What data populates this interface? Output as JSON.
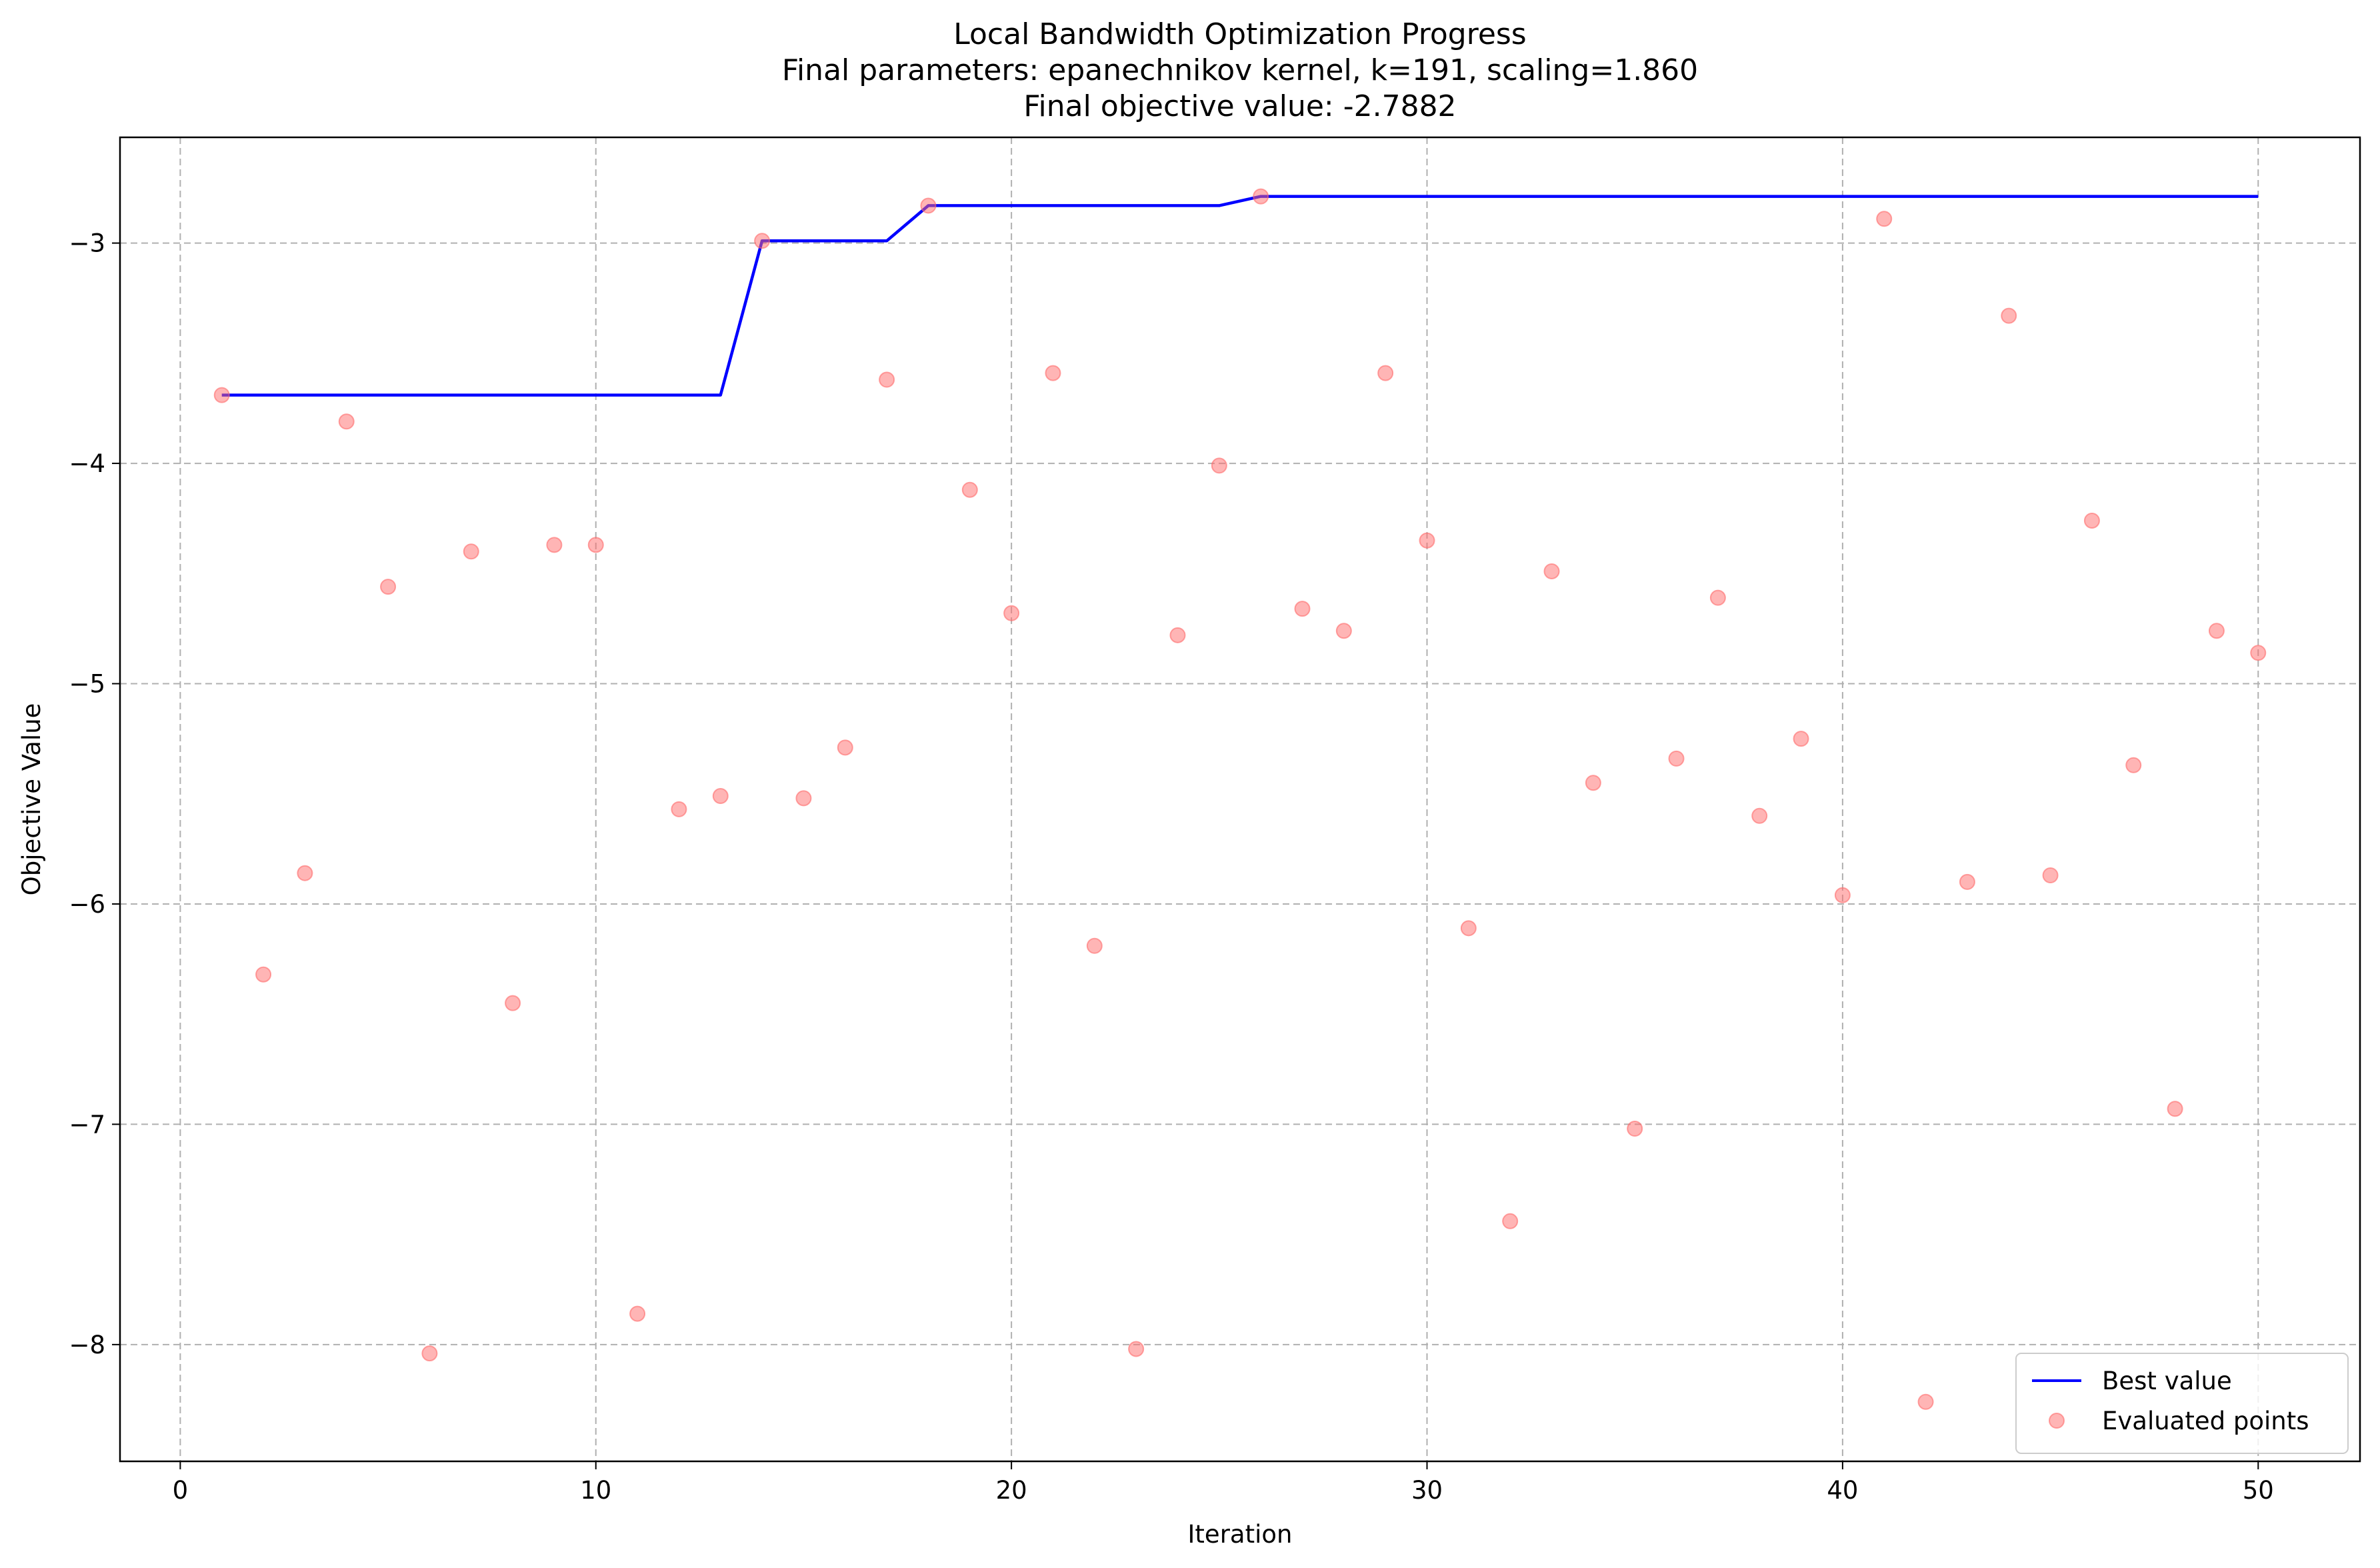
{
  "chart_data": {
    "type": "scatter",
    "title_lines": [
      "Local Bandwidth Optimization Progress",
      "Final parameters: epanechnikov kernel, k=191, scaling=1.860",
      "Final objective value: -2.7882"
    ],
    "xlabel": "Iteration",
    "ylabel": "Objective Value",
    "xlim": [
      -1.45,
      52.45
    ],
    "ylim": [
      -8.53,
      -2.52
    ],
    "x_ticks": [
      0,
      10,
      20,
      30,
      40,
      50
    ],
    "y_ticks": [
      -3,
      -4,
      -5,
      -6,
      -7,
      -8
    ],
    "x_tick_labels": [
      "0",
      "10",
      "20",
      "30",
      "40",
      "50"
    ],
    "y_tick_labels": [
      "−3",
      "−4",
      "−5",
      "−6",
      "−7",
      "−8"
    ],
    "grid": true,
    "legend_position": "bottom-right",
    "series": [
      {
        "name": "Best value",
        "kind": "line",
        "color": "#0000ff",
        "x": [
          1,
          2,
          3,
          4,
          5,
          6,
          7,
          8,
          9,
          10,
          11,
          12,
          13,
          14,
          15,
          16,
          17,
          18,
          19,
          20,
          21,
          22,
          23,
          24,
          25,
          26,
          27,
          28,
          29,
          30,
          31,
          32,
          33,
          34,
          35,
          36,
          37,
          38,
          39,
          40,
          41,
          42,
          43,
          44,
          45,
          46,
          47,
          48,
          49,
          50
        ],
        "y": [
          -3.69,
          -3.69,
          -3.69,
          -3.69,
          -3.69,
          -3.69,
          -3.69,
          -3.69,
          -3.69,
          -3.69,
          -3.69,
          -3.69,
          -3.69,
          -2.99,
          -2.99,
          -2.99,
          -2.99,
          -2.83,
          -2.83,
          -2.83,
          -2.83,
          -2.83,
          -2.83,
          -2.83,
          -2.83,
          -2.7882,
          -2.7882,
          -2.7882,
          -2.7882,
          -2.7882,
          -2.7882,
          -2.7882,
          -2.7882,
          -2.7882,
          -2.7882,
          -2.7882,
          -2.7882,
          -2.7882,
          -2.7882,
          -2.7882,
          -2.7882,
          -2.7882,
          -2.7882,
          -2.7882,
          -2.7882,
          -2.7882,
          -2.7882,
          -2.7882,
          -2.7882,
          -2.7882
        ]
      },
      {
        "name": "Evaluated points",
        "kind": "scatter",
        "color": "#ff6b6b",
        "x": [
          1,
          2,
          3,
          4,
          5,
          6,
          7,
          8,
          9,
          10,
          11,
          12,
          13,
          14,
          15,
          16,
          17,
          18,
          19,
          20,
          21,
          22,
          23,
          24,
          25,
          26,
          27,
          28,
          29,
          30,
          31,
          32,
          33,
          34,
          35,
          36,
          37,
          38,
          39,
          40,
          41,
          42,
          43,
          44,
          45,
          46,
          47,
          48,
          49,
          50
        ],
        "y": [
          -3.69,
          -6.32,
          -5.86,
          -3.81,
          -4.56,
          -8.04,
          -4.4,
          -6.45,
          -4.37,
          -4.37,
          -7.86,
          -5.57,
          -5.51,
          -2.99,
          -5.52,
          -5.29,
          -3.62,
          -2.83,
          -4.12,
          -4.68,
          -3.59,
          -6.19,
          -8.02,
          -4.78,
          -4.01,
          -2.7882,
          -4.66,
          -4.76,
          -3.59,
          -4.35,
          -6.11,
          -7.44,
          -4.49,
          -5.45,
          -7.02,
          -5.34,
          -4.61,
          -5.6,
          -5.25,
          -5.96,
          -2.89,
          -8.26,
          -5.9,
          -3.33,
          -5.87,
          -4.26,
          -5.37,
          -6.93,
          -4.76,
          -4.86
        ]
      }
    ]
  }
}
